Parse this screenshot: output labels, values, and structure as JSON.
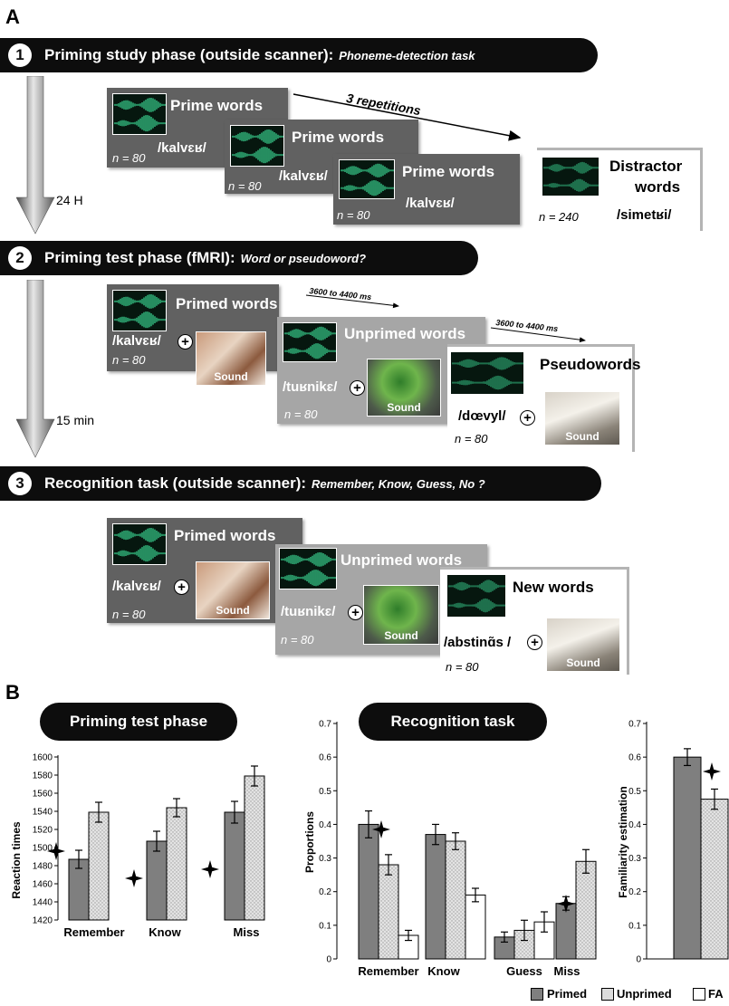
{
  "panel_a": "A",
  "panel_b": "B",
  "phases": [
    {
      "num": "1",
      "title": "Priming study phase (outside scanner):",
      "task": "Phoneme-detection task"
    },
    {
      "num": "2",
      "title": "Priming test phase (fMRI):",
      "task": "Word or pseudoword?"
    },
    {
      "num": "3",
      "title": "Recognition task (outside scanner):",
      "task": "Remember, Know, Guess, No ?"
    }
  ],
  "delays": [
    "24 H",
    "15 min"
  ],
  "study": {
    "cards": [
      {
        "title": "Prime words",
        "word": "/kalvɛʁ/",
        "n": "n = 80"
      },
      {
        "title": "Prime words",
        "word": "/kalvɛʁ/",
        "n": "n = 80"
      },
      {
        "title": "Prime words",
        "word": "/kalvɛʁ/",
        "n": "n = 80"
      }
    ],
    "repetitions": "3 repetitions",
    "distractor": {
      "title1": "Distractor",
      "title2": "words",
      "word": "/simetʁi/",
      "n": "n = 240"
    }
  },
  "test": {
    "cards": [
      {
        "title": "Primed words",
        "word": "/kalvɛʁ/",
        "n": "n = 80",
        "sound": "Sound"
      },
      {
        "title": "Unprimed words",
        "word": "/tuʁnikɛ/",
        "n": "n = 80",
        "sound": "Sound"
      },
      {
        "title": "Pseudowords",
        "word": "/dœvyl/",
        "n": "n = 80",
        "sound": "Sound"
      }
    ],
    "timing1": "3600 to 4400 ms",
    "timing2": "3600 to 4400 ms"
  },
  "recognition": {
    "cards": [
      {
        "title": "Primed words",
        "word": "/kalvɛʁ/",
        "n": "n = 80",
        "sound": "Sound"
      },
      {
        "title": "Unprimed words",
        "word": "/tuʁnikɛ/",
        "n": "n = 80",
        "sound": "Sound"
      },
      {
        "title": "New words",
        "word": "/abstinɑ̃s /",
        "n": "n = 80",
        "sound": "Sound"
      }
    ]
  },
  "colors": {
    "primed": "#7f7f7f",
    "unprimed": "#d9d9d9",
    "fa": "#ffffff",
    "banner": "#0d0d0d",
    "wave": "#3ddc97"
  },
  "legend": [
    "Primed",
    "Unprimed",
    "FA"
  ],
  "chart_data": [
    {
      "type": "bar",
      "title": "Priming test phase",
      "ylabel": "Reaction times",
      "ylim": [
        1420,
        1600
      ],
      "yticks": [
        1420,
        1440,
        1460,
        1480,
        1500,
        1520,
        1540,
        1560,
        1580,
        1600
      ],
      "categories": [
        "Remember",
        "Know",
        "Miss"
      ],
      "series": [
        {
          "name": "Primed",
          "values": [
            1487,
            1507,
            1539
          ],
          "errors": [
            10,
            11,
            12
          ]
        },
        {
          "name": "Unprimed",
          "values": [
            1539,
            1544,
            1579
          ],
          "errors": [
            11,
            10,
            11
          ]
        }
      ],
      "significance": [
        "Remember",
        "Know",
        "Miss"
      ]
    },
    {
      "type": "bar",
      "title": "Recognition task",
      "ylabel": "Proportions",
      "ylim": [
        0,
        0.7
      ],
      "yticks": [
        "0",
        "0.1",
        "0.2",
        "0.3",
        "0.4",
        "0.5",
        "0.6",
        "0.7"
      ],
      "categories": [
        "Remember",
        "Know",
        "Guess",
        "Miss"
      ],
      "series": [
        {
          "name": "Primed",
          "values": [
            0.4,
            0.37,
            0.065,
            0.165
          ],
          "errors": [
            0.04,
            0.03,
            0.015,
            0.02
          ]
        },
        {
          "name": "Unprimed",
          "values": [
            0.28,
            0.35,
            0.085,
            0.29
          ],
          "errors": [
            0.03,
            0.025,
            0.03,
            0.035
          ]
        },
        {
          "name": "FA",
          "values": [
            0.07,
            0.19,
            0.11,
            null
          ],
          "errors": [
            0.015,
            0.02,
            0.03,
            null
          ]
        }
      ],
      "significance": [
        "Remember",
        "Miss"
      ]
    },
    {
      "type": "bar",
      "ylabel": "Familiarity estimation",
      "ylim": [
        0,
        0.7
      ],
      "yticks": [
        "0",
        "0.1",
        "0.2",
        "0.3",
        "0.4",
        "0.5",
        "0.6",
        "0.7"
      ],
      "series": [
        {
          "name": "Primed",
          "values": [
            0.6
          ],
          "errors": [
            0.025
          ]
        },
        {
          "name": "Unprimed",
          "values": [
            0.475
          ],
          "errors": [
            0.03
          ]
        }
      ],
      "significance": [
        "Unprimed"
      ]
    }
  ]
}
